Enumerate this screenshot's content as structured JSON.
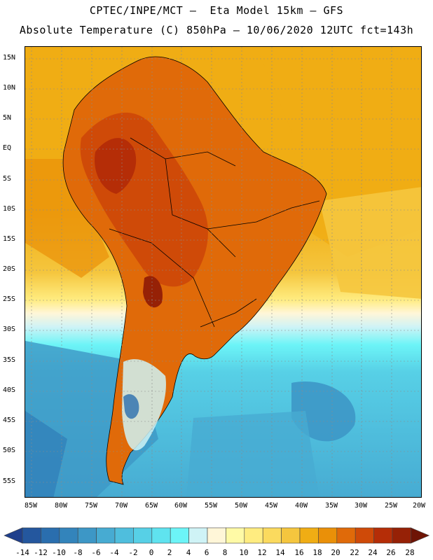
{
  "title_line1": "CPTEC/INPE/MCT –  Eta Model 15km – GFS",
  "title_line2": "Absolute Temperature (C) 850hPa – 10/06/2020 12UTC fct=143h",
  "lat_labels": [
    "15N",
    "10N",
    "5N",
    "EQ",
    "5S",
    "10S",
    "15S",
    "20S",
    "25S",
    "30S",
    "35S",
    "40S",
    "45S",
    "50S",
    "55S"
  ],
  "lon_labels": [
    "85W",
    "80W",
    "75W",
    "70W",
    "65W",
    "60W",
    "55W",
    "50W",
    "45W",
    "40W",
    "35W",
    "30W",
    "25W",
    "20W"
  ],
  "legend": {
    "values": [
      "-14",
      "-12",
      "-10",
      "-8",
      "-6",
      "-4",
      "-2",
      "0",
      "2",
      "4",
      "6",
      "8",
      "10",
      "12",
      "14",
      "16",
      "18",
      "20",
      "22",
      "24",
      "26",
      "28"
    ],
    "colors": [
      "#1f3f8c",
      "#24579e",
      "#2a6eae",
      "#3384bb",
      "#3d97c6",
      "#47abd2",
      "#4fbedd",
      "#57d0e6",
      "#5fe3ef",
      "#6cf4f7",
      "#cff3f6",
      "#fff6d8",
      "#fffaa6",
      "#ffec80",
      "#fbda5e",
      "#f5c63e",
      "#f0ad14",
      "#ea9008",
      "#e06a09",
      "#cf4a08",
      "#b52d07",
      "#962106",
      "#6e1405"
    ]
  }
}
